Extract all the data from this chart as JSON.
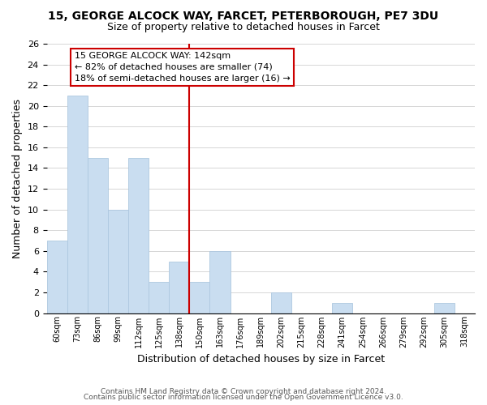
{
  "title": "15, GEORGE ALCOCK WAY, FARCET, PETERBOROUGH, PE7 3DU",
  "subtitle": "Size of property relative to detached houses in Farcet",
  "xlabel": "Distribution of detached houses by size in Farcet",
  "ylabel": "Number of detached properties",
  "bin_labels": [
    "60sqm",
    "73sqm",
    "86sqm",
    "99sqm",
    "112sqm",
    "125sqm",
    "138sqm",
    "150sqm",
    "163sqm",
    "176sqm",
    "189sqm",
    "202sqm",
    "215sqm",
    "228sqm",
    "241sqm",
    "254sqm",
    "266sqm",
    "279sqm",
    "292sqm",
    "305sqm",
    "318sqm"
  ],
  "bar_heights": [
    7,
    21,
    15,
    10,
    15,
    3,
    5,
    3,
    6,
    0,
    0,
    2,
    0,
    0,
    1,
    0,
    0,
    0,
    0,
    1,
    0
  ],
  "bar_color": "#c9ddf0",
  "bar_edge_color": "#aec8e0",
  "highlight_line_color": "#cc0000",
  "ylim": [
    0,
    26
  ],
  "yticks": [
    0,
    2,
    4,
    6,
    8,
    10,
    12,
    14,
    16,
    18,
    20,
    22,
    24,
    26
  ],
  "annotation_line1": "15 GEORGE ALCOCK WAY: 142sqm",
  "annotation_line2": "← 82% of detached houses are smaller (74)",
  "annotation_line3": "18% of semi-detached houses are larger (16) →",
  "annotation_box_color": "#ffffff",
  "annotation_box_edge_color": "#cc0000",
  "footer_line1": "Contains HM Land Registry data © Crown copyright and database right 2024.",
  "footer_line2": "Contains public sector information licensed under the Open Government Licence v3.0."
}
